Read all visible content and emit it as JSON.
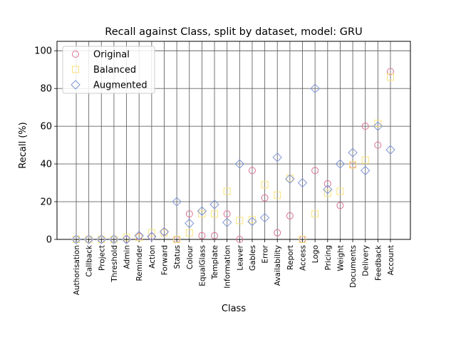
{
  "chart_data": {
    "type": "scatter",
    "title": "Recall against Class, split by dataset, model: GRU",
    "xlabel": "Class",
    "ylabel": "Recall (%)",
    "ylim": [
      0,
      105
    ],
    "yticks": [
      0,
      20,
      40,
      60,
      80,
      100
    ],
    "grid": true,
    "legend_position": "upper-left",
    "categories": [
      "Authorisation",
      "Callback",
      "Project",
      "Threshold",
      "Admin",
      "Reminder",
      "Action",
      "Forward",
      "Status",
      "Colour",
      "EqualGlass",
      "Template",
      "Information",
      "Leaver",
      "Gables",
      "Error",
      "Availability",
      "Report",
      "Access",
      "Logo",
      "Pricing",
      "Weight",
      "Documents",
      "Delivery",
      "Feedback",
      "Account"
    ],
    "series": [
      {
        "name": "Original",
        "marker": "circle",
        "color": "#d9708f",
        "values": [
          0,
          0,
          0,
          0,
          0,
          1.5,
          1.5,
          4,
          0,
          13.5,
          2,
          2,
          13.5,
          0,
          36.5,
          22,
          3.5,
          12.5,
          0,
          36.5,
          29.5,
          18,
          39.5,
          60,
          50,
          89
        ]
      },
      {
        "name": "Balanced",
        "marker": "square",
        "color": "#f7e27a",
        "values": [
          0,
          0,
          0,
          0,
          1,
          1,
          3.5,
          3.5,
          0,
          3.5,
          13.5,
          13.5,
          25.5,
          10,
          10.5,
          29,
          23.5,
          32.5,
          0,
          13.5,
          24.5,
          25.5,
          39.5,
          42,
          61.5,
          86
        ]
      },
      {
        "name": "Augmented",
        "marker": "diamond",
        "color": "#7f96d6",
        "values": [
          0,
          0,
          0,
          0,
          0,
          2,
          1.5,
          4,
          20,
          8.5,
          15,
          18.5,
          9,
          40,
          9.5,
          11.5,
          43.5,
          32,
          30,
          80,
          26.5,
          40,
          46,
          36.5,
          60,
          47.5
        ]
      }
    ]
  }
}
